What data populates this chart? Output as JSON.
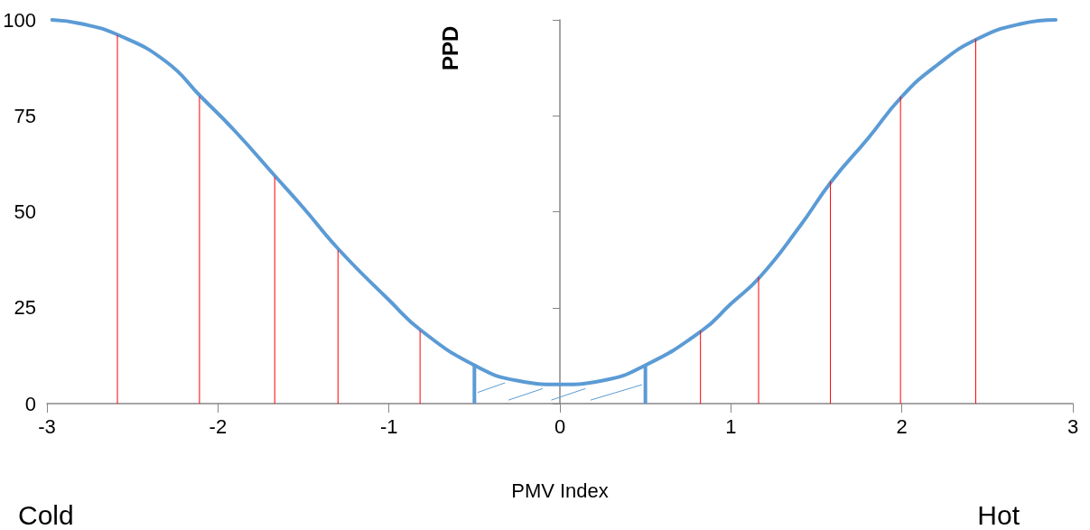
{
  "chart_data": {
    "type": "line",
    "xlabel": "PMV Index",
    "ylabel": "PPD",
    "annotations": [
      "Cold",
      "Hot"
    ],
    "xlim": [
      -3,
      3
    ],
    "xticks": [
      -3,
      -2,
      -1,
      0,
      1,
      2,
      3
    ],
    "ylim": [
      0,
      100
    ],
    "yticks": [
      0,
      25,
      50,
      75,
      100
    ],
    "marker": "none",
    "line_style": "solid",
    "series": [
      {
        "color": "#5b9bd5",
        "x": [
          -2.97,
          -2.8,
          -2.58,
          -2.3,
          -2.1,
          -1.9,
          -1.66,
          -1.5,
          -1.29,
          -1,
          -0.81,
          -0.5,
          -0.25,
          0,
          0.25,
          0.5,
          0.83,
          1,
          1.17,
          1.4,
          1.59,
          1.8,
          2,
          2.2,
          2.44,
          2.7,
          2.9
        ],
        "values": [
          100,
          99,
          96,
          89,
          80,
          71,
          59,
          51,
          40,
          27,
          19,
          10,
          6,
          5,
          6,
          10,
          19,
          26,
          33,
          46,
          58,
          69,
          80,
          88,
          95,
          99,
          100
        ]
      },
      {
        "type": "bar",
        "color": "#ff0000",
        "x": [
          -2.58,
          -2.1,
          -1.66,
          -1.29,
          -0.81,
          0.83,
          1.17,
          1.59,
          2,
          2.44
        ],
        "values": [
          96,
          80,
          59,
          40,
          19,
          19,
          33,
          58,
          80,
          95
        ]
      },
      {
        "type": "bar",
        "color": "#5b9bd5",
        "x": [
          -0.5,
          0.5
        ],
        "values": [
          10,
          10
        ]
      }
    ]
  }
}
